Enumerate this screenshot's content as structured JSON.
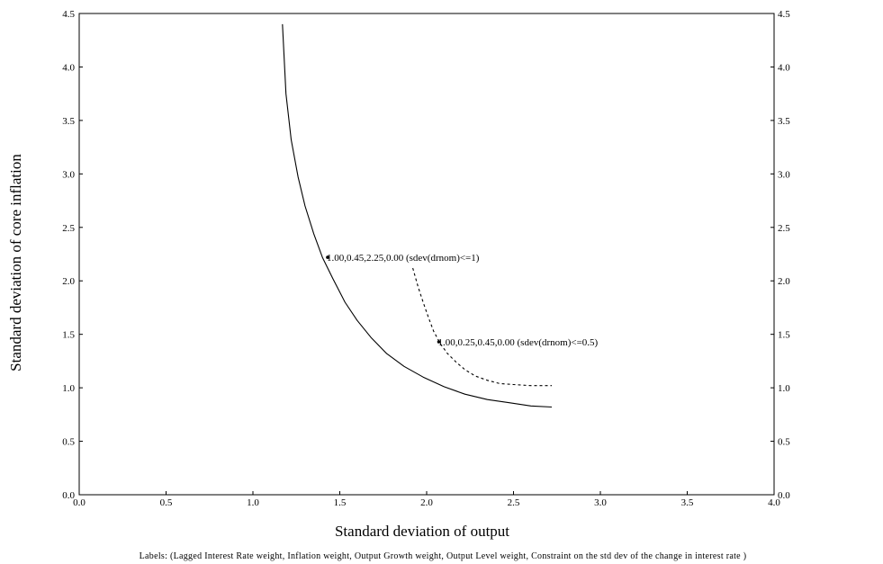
{
  "chart_data": {
    "type": "line",
    "title": "",
    "xlabel": "Standard deviation of output",
    "ylabel": "Standard deviation of core inflation",
    "xlim": [
      0.0,
      4.0
    ],
    "ylim": [
      0.0,
      4.5
    ],
    "x_ticks": [
      "0.0",
      "0.5",
      "1.0",
      "1.5",
      "2.0",
      "2.5",
      "3.0",
      "3.5",
      "4.0"
    ],
    "y_ticks": [
      "0.0",
      "0.5",
      "1.0",
      "1.5",
      "2.0",
      "2.5",
      "3.0",
      "3.5",
      "4.0",
      "4.5"
    ],
    "y_ticks_right": [
      "0.0",
      "0.5",
      "1.0",
      "1.5",
      "2.0",
      "2.5",
      "3.0",
      "3.5",
      "4.0",
      "4.5"
    ],
    "grid": false,
    "series": [
      {
        "style": "solid",
        "color": "#000000",
        "x": [
          1.17,
          1.19,
          1.22,
          1.26,
          1.3,
          1.35,
          1.4,
          1.46,
          1.53,
          1.6,
          1.68,
          1.77,
          1.87,
          1.98,
          2.1,
          2.22,
          2.35,
          2.48,
          2.6,
          2.72
        ],
        "y": [
          4.4,
          3.75,
          3.32,
          2.97,
          2.7,
          2.44,
          2.22,
          2.02,
          1.8,
          1.63,
          1.47,
          1.32,
          1.2,
          1.1,
          1.01,
          0.94,
          0.89,
          0.86,
          0.83,
          0.82
        ]
      },
      {
        "style": "dashed",
        "color": "#000000",
        "x": [
          1.92,
          1.95,
          1.98,
          2.01,
          2.04,
          2.08,
          2.12,
          2.17,
          2.22,
          2.28,
          2.35,
          2.42,
          2.5,
          2.6,
          2.72
        ],
        "y": [
          2.12,
          1.95,
          1.8,
          1.66,
          1.53,
          1.41,
          1.32,
          1.24,
          1.17,
          1.11,
          1.07,
          1.04,
          1.03,
          1.02,
          1.02
        ]
      }
    ],
    "annotations": [
      {
        "x": 1.43,
        "y": 2.22,
        "text": "1.00,0.45,2.25,0.00 (sdev(drnom)<=1)"
      },
      {
        "x": 2.07,
        "y": 1.43,
        "text": "1.00,0.25,0.45,0.00 (sdev(drnom)<=0.5)"
      }
    ],
    "footnote": "Labels: (Lagged Interest Rate weight, Inflation weight, Output Growth weight, Output Level weight, Constraint on the std dev of the change in interest rate )"
  }
}
